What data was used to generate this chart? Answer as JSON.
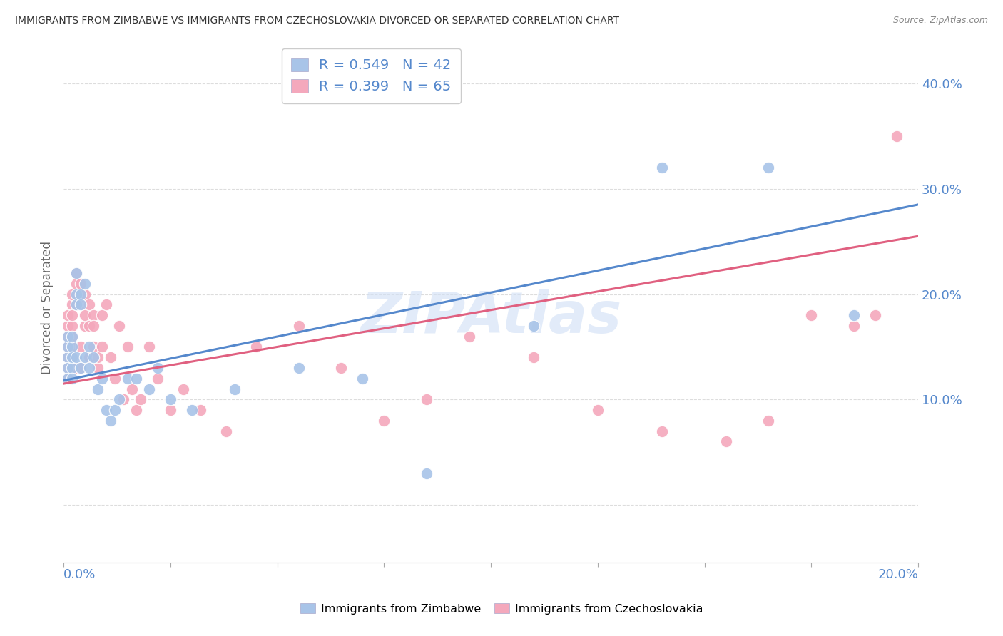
{
  "title": "IMMIGRANTS FROM ZIMBABWE VS IMMIGRANTS FROM CZECHOSLOVAKIA DIVORCED OR SEPARATED CORRELATION CHART",
  "source": "Source: ZipAtlas.com",
  "ylabel": "Divorced or Separated",
  "yticks": [
    0.0,
    0.1,
    0.2,
    0.3,
    0.4
  ],
  "ytick_labels": [
    "",
    "10.0%",
    "20.0%",
    "30.0%",
    "40.0%"
  ],
  "xlim": [
    0.0,
    0.2
  ],
  "ylim": [
    -0.055,
    0.43
  ],
  "legend1_label": "R = 0.549   N = 42",
  "legend2_label": "R = 0.399   N = 65",
  "series1_color": "#a8c4e8",
  "series2_color": "#f4a8bc",
  "line1_color": "#5588cc",
  "line2_color": "#e06080",
  "background_color": "#ffffff",
  "grid_color": "#dddddd",
  "title_color": "#333333",
  "axis_label_color": "#5588cc",
  "watermark_color": "#d0dff5",
  "zimbabwe_x": [
    0.001,
    0.001,
    0.001,
    0.001,
    0.001,
    0.002,
    0.002,
    0.002,
    0.002,
    0.002,
    0.003,
    0.003,
    0.003,
    0.003,
    0.004,
    0.004,
    0.004,
    0.005,
    0.005,
    0.006,
    0.006,
    0.007,
    0.008,
    0.009,
    0.01,
    0.011,
    0.012,
    0.013,
    0.015,
    0.017,
    0.02,
    0.022,
    0.025,
    0.03,
    0.04,
    0.055,
    0.07,
    0.085,
    0.11,
    0.14,
    0.165,
    0.185
  ],
  "zimbabwe_y": [
    0.14,
    0.13,
    0.15,
    0.12,
    0.16,
    0.13,
    0.15,
    0.16,
    0.14,
    0.12,
    0.2,
    0.14,
    0.19,
    0.22,
    0.13,
    0.2,
    0.19,
    0.14,
    0.21,
    0.13,
    0.15,
    0.14,
    0.11,
    0.12,
    0.09,
    0.08,
    0.09,
    0.1,
    0.12,
    0.12,
    0.11,
    0.13,
    0.1,
    0.09,
    0.11,
    0.13,
    0.12,
    0.03,
    0.17,
    0.32,
    0.32,
    0.18
  ],
  "czecho_x": [
    0.001,
    0.001,
    0.001,
    0.001,
    0.001,
    0.001,
    0.001,
    0.002,
    0.002,
    0.002,
    0.002,
    0.002,
    0.002,
    0.002,
    0.003,
    0.003,
    0.003,
    0.003,
    0.004,
    0.004,
    0.004,
    0.004,
    0.005,
    0.005,
    0.005,
    0.006,
    0.006,
    0.006,
    0.007,
    0.007,
    0.007,
    0.008,
    0.008,
    0.009,
    0.009,
    0.01,
    0.011,
    0.012,
    0.013,
    0.014,
    0.015,
    0.016,
    0.017,
    0.018,
    0.02,
    0.022,
    0.025,
    0.028,
    0.032,
    0.038,
    0.045,
    0.055,
    0.065,
    0.075,
    0.085,
    0.095,
    0.11,
    0.125,
    0.14,
    0.155,
    0.165,
    0.175,
    0.185,
    0.19,
    0.195
  ],
  "czecho_y": [
    0.14,
    0.16,
    0.15,
    0.12,
    0.17,
    0.13,
    0.18,
    0.15,
    0.19,
    0.14,
    0.16,
    0.17,
    0.2,
    0.18,
    0.21,
    0.19,
    0.13,
    0.22,
    0.15,
    0.19,
    0.21,
    0.13,
    0.17,
    0.2,
    0.18,
    0.19,
    0.14,
    0.17,
    0.18,
    0.15,
    0.17,
    0.13,
    0.14,
    0.15,
    0.18,
    0.19,
    0.14,
    0.12,
    0.17,
    0.1,
    0.15,
    0.11,
    0.09,
    0.1,
    0.15,
    0.12,
    0.09,
    0.11,
    0.09,
    0.07,
    0.15,
    0.17,
    0.13,
    0.08,
    0.1,
    0.16,
    0.14,
    0.09,
    0.07,
    0.06,
    0.08,
    0.18,
    0.17,
    0.18,
    0.35
  ],
  "zim_trend_x0": 0.0,
  "zim_trend_y0": 0.118,
  "zim_trend_x1": 0.2,
  "zim_trend_y1": 0.285,
  "cz_trend_x0": 0.0,
  "cz_trend_y0": 0.115,
  "cz_trend_x1": 0.2,
  "cz_trend_y1": 0.255
}
